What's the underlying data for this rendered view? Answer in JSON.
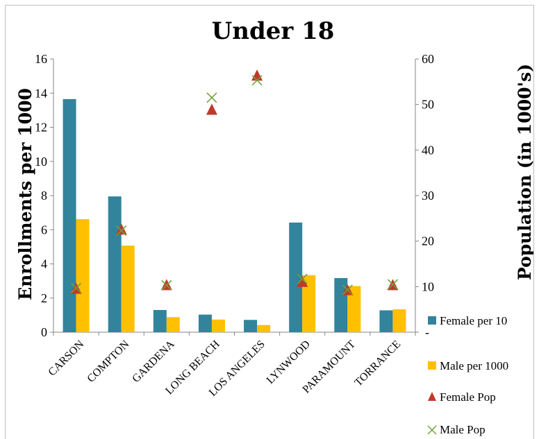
{
  "chart_data": {
    "type": "bar",
    "title": "Under 18",
    "ylabel": "Enrollments per 1000",
    "y2label": "Population (in 1000's)",
    "categories": [
      "CARSON",
      "COMPTON",
      "GARDENA",
      "LONG BEACH",
      "LOS ANGELES",
      "LYNWOOD",
      "PARAMOUNT",
      "TORRANCE"
    ],
    "ylim": [
      0,
      16
    ],
    "yticks": [
      "0",
      "2",
      "4",
      "6",
      "8",
      "10",
      "12",
      "14",
      "16"
    ],
    "y2lim": [
      0,
      60
    ],
    "y2ticks": [
      "10",
      "20",
      "30",
      "40",
      "50",
      "60"
    ],
    "y2zero_label": "-",
    "series": [
      {
        "name": "Female per 10",
        "kind": "bar",
        "axis": "left",
        "color": "#31849B",
        "values": [
          13.65,
          7.95,
          1.3,
          1.03,
          0.72,
          6.42,
          3.17,
          1.28
        ]
      },
      {
        "name": "Male per 1000",
        "kind": "bar",
        "axis": "left",
        "color": "#FFC000",
        "values": [
          6.62,
          5.07,
          0.88,
          0.74,
          0.42,
          3.34,
          2.7,
          1.34
        ]
      },
      {
        "name": "Female Pop",
        "kind": "marker",
        "marker": "triangle",
        "axis": "right",
        "color": "#C0392B",
        "values": [
          9.5,
          22.5,
          10.3,
          48.8,
          56.3,
          11.0,
          9.2,
          10.3
        ]
      },
      {
        "name": "Male Pop",
        "kind": "marker",
        "marker": "x",
        "axis": "right",
        "color": "#6FA23A",
        "values": [
          9.7,
          22.3,
          10.3,
          51.5,
          55.3,
          11.7,
          9.3,
          10.5
        ]
      }
    ],
    "grid": false,
    "legend": "right"
  }
}
